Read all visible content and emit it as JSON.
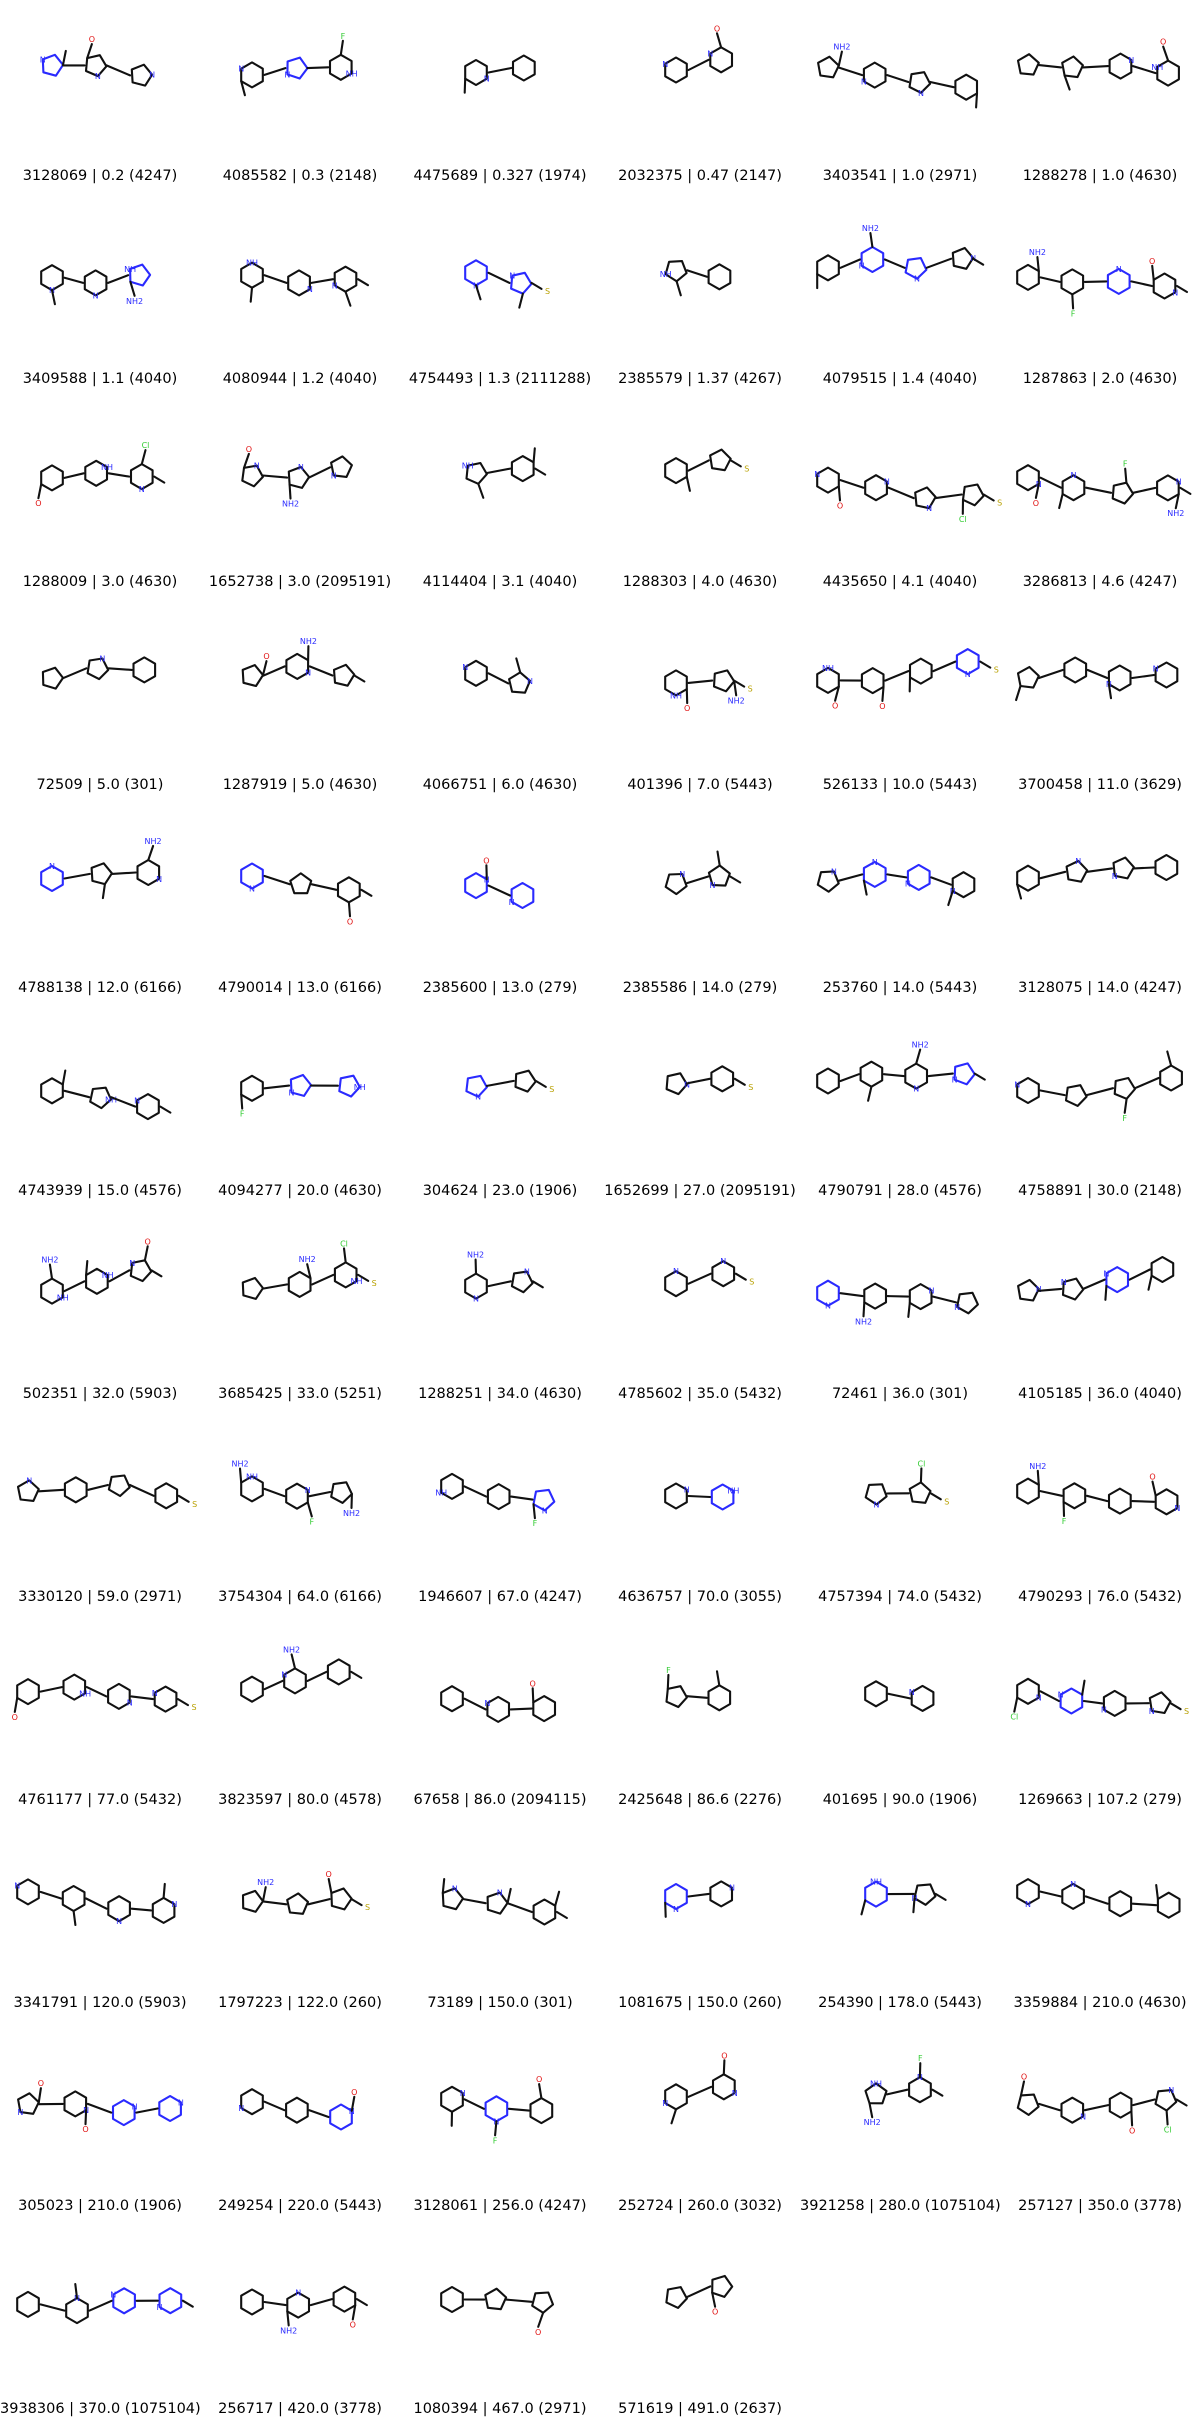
{
  "compounds": [
    {
      "label": "3128069 | 0.2 (4247)"
    },
    {
      "label": "4085582 | 0.3 (2148)"
    },
    {
      "label": "4475689 | 0.327 (1974)"
    },
    {
      "label": "2032375 | 0.47 (2147)"
    },
    {
      "label": "3403541 | 1.0 (2971)"
    },
    {
      "label": "1288278 | 1.0 (4630)"
    },
    {
      "label": "3409588 | 1.1 (4040)"
    },
    {
      "label": "4080944 | 1.2 (4040)"
    },
    {
      "label": "4754493 | 1.3 (2111288)"
    },
    {
      "label": "2385579 | 1.37 (4267)"
    },
    {
      "label": "4079515 | 1.4 (4040)"
    },
    {
      "label": "1287863 | 2.0 (4630)"
    },
    {
      "label": "1288009 | 3.0 (4630)"
    },
    {
      "label": "1652738 | 3.0 (2095191)"
    },
    {
      "label": "4114404 | 3.1 (4040)"
    },
    {
      "label": "1288303 | 4.0 (4630)"
    },
    {
      "label": "4435650 | 4.1 (4040)"
    },
    {
      "label": "3286813 | 4.6 (4247)"
    },
    {
      "label": "72509 | 5.0 (301)"
    },
    {
      "label": "1287919 | 5.0 (4630)"
    },
    {
      "label": "4066751 | 6.0 (4630)"
    },
    {
      "label": "401396 | 7.0 (5443)"
    },
    {
      "label": "526133 | 10.0 (5443)"
    },
    {
      "label": "3700458 | 11.0 (3629)"
    },
    {
      "label": "4788138 | 12.0 (6166)"
    },
    {
      "label": "4790014 | 13.0 (6166)"
    },
    {
      "label": "2385600 | 13.0 (279)"
    },
    {
      "label": "2385586 | 14.0 (279)"
    },
    {
      "label": "253760 | 14.0 (5443)"
    },
    {
      "label": "3128075 | 14.0 (4247)"
    },
    {
      "label": "4743939 | 15.0 (4576)"
    },
    {
      "label": "4094277 | 20.0 (4630)"
    },
    {
      "label": "304624 | 23.0 (1906)"
    },
    {
      "label": "1652699 | 27.0 (2095191)"
    },
    {
      "label": "4790791 | 28.0 (4576)"
    },
    {
      "label": "4758891 | 30.0 (2148)"
    },
    {
      "label": "502351 | 32.0 (5903)"
    },
    {
      "label": "3685425 | 33.0 (5251)"
    },
    {
      "label": "1288251 | 34.0 (4630)"
    },
    {
      "label": "4785602 | 35.0 (5432)"
    },
    {
      "label": "72461 | 36.0 (301)"
    },
    {
      "label": "4105185 | 36.0 (4040)"
    },
    {
      "label": "3330120 | 59.0 (2971)"
    },
    {
      "label": "3754304 | 64.0 (6166)"
    },
    {
      "label": "1946607 | 67.0 (4247)"
    },
    {
      "label": "4636757 | 70.0 (3055)"
    },
    {
      "label": "4757394 | 74.0 (5432)"
    },
    {
      "label": "4790293 | 76.0 (5432)"
    },
    {
      "label": "4761177 | 77.0 (5432)"
    },
    {
      "label": "3823597 | 80.0 (4578)"
    },
    {
      "label": "67658 | 86.0 (2094115)"
    },
    {
      "label": "2425648 | 86.6 (2276)"
    },
    {
      "label": "401695 | 90.0 (1906)"
    },
    {
      "label": "1269663 | 107.2 (279)"
    },
    {
      "label": "3341791 | 120.0 (5903)"
    },
    {
      "label": "1797223 | 122.0 (260)"
    },
    {
      "label": "73189 | 150.0 (301)"
    },
    {
      "label": "1081675 | 150.0 (260)"
    },
    {
      "label": "254390 | 178.0 (5443)"
    },
    {
      "label": "3359884 | 210.0 (4630)"
    },
    {
      "label": "305023 | 210.0 (1906)"
    },
    {
      "label": "249254 | 220.0 (5443)"
    },
    {
      "label": "3128061 | 256.0 (4247)"
    },
    {
      "label": "252724 | 260.0 (3032)"
    },
    {
      "label": "3921258 | 280.0 (1075104)"
    },
    {
      "label": "257127 | 350.0 (3778)"
    },
    {
      "label": "3938306 | 370.0 (1075104)"
    },
    {
      "label": "256717 | 420.0 (3778)"
    },
    {
      "label": "1080394 | 467.0 (2971)"
    },
    {
      "label": "571619 | 491.0 (2637)"
    }
  ],
  "colors": {
    "carbon": "#111111",
    "nitrogen": "#2a2aff",
    "oxygen": "#e01010",
    "halogen": "#33cc33",
    "sulfur": "#c9b400"
  }
}
